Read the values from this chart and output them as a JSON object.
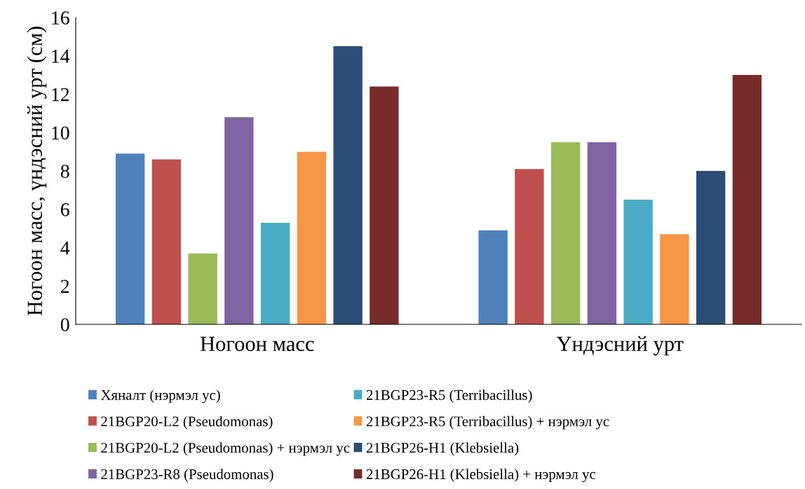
{
  "chart_data": {
    "type": "bar",
    "ylabel": "Ногоон масс, үндэсний урт (см)",
    "categories": [
      "Ногоон масс",
      "Үндэсний урт"
    ],
    "series": [
      {
        "name": "Хяналт (нэрмэл ус)",
        "color": "#4f81bd",
        "values": [
          8.9,
          4.9
        ]
      },
      {
        "name": "21BGP20-L2 (Pseudomonas)",
        "color": "#c0504d",
        "values": [
          8.6,
          8.1
        ]
      },
      {
        "name": "21BGP20-L2 (Pseudomonas) + нэрмэл ус",
        "color": "#9bbb59",
        "values": [
          3.7,
          9.5
        ]
      },
      {
        "name": "21BGP23-R8 (Pseudomonas)",
        "color": "#8064a2",
        "values": [
          10.8,
          9.5
        ]
      },
      {
        "name": "21BGP23-R5 (Terribacillus)",
        "color": "#4bacc6",
        "values": [
          5.3,
          6.5
        ]
      },
      {
        "name": "21BGP23-R5 (Terribacillus) + нэрмэл ус",
        "color": "#f79646",
        "values": [
          9.0,
          4.7
        ]
      },
      {
        "name": "21BGP26-H1 (Klebsiella)",
        "color": "#2c4d75",
        "values": [
          14.5,
          8.0
        ]
      },
      {
        "name": "21BGP26-H1 (Klebsiella) + нэрмэл ус",
        "color": "#772c2a",
        "values": [
          12.4,
          13.0
        ]
      }
    ],
    "ylim": [
      0,
      16
    ],
    "yticks": [
      0,
      2,
      4,
      6,
      8,
      10,
      12,
      14,
      16
    ],
    "grid": false,
    "legend": "bottom"
  }
}
